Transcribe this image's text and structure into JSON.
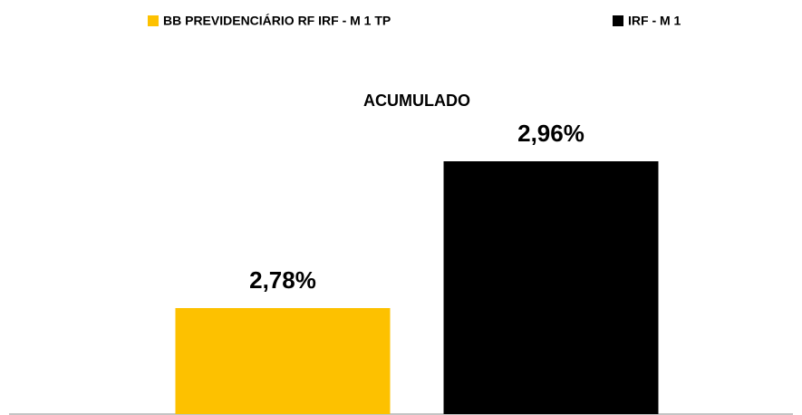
{
  "chart_data": {
    "type": "bar",
    "categories": [
      "ACUMULADO"
    ],
    "series": [
      {
        "name": "BB PREVIDENCIÁRIO RF IRF - M 1 TP",
        "color": "#fdc100",
        "values": [
          2.78
        ],
        "value_labels": [
          "2,78%"
        ]
      },
      {
        "name": "IRF - M 1",
        "color": "#000000",
        "values": [
          2.96
        ],
        "value_labels": [
          "2,96%"
        ]
      }
    ],
    "ylim": [
      2.65,
      3.0
    ],
    "legend": "top"
  }
}
